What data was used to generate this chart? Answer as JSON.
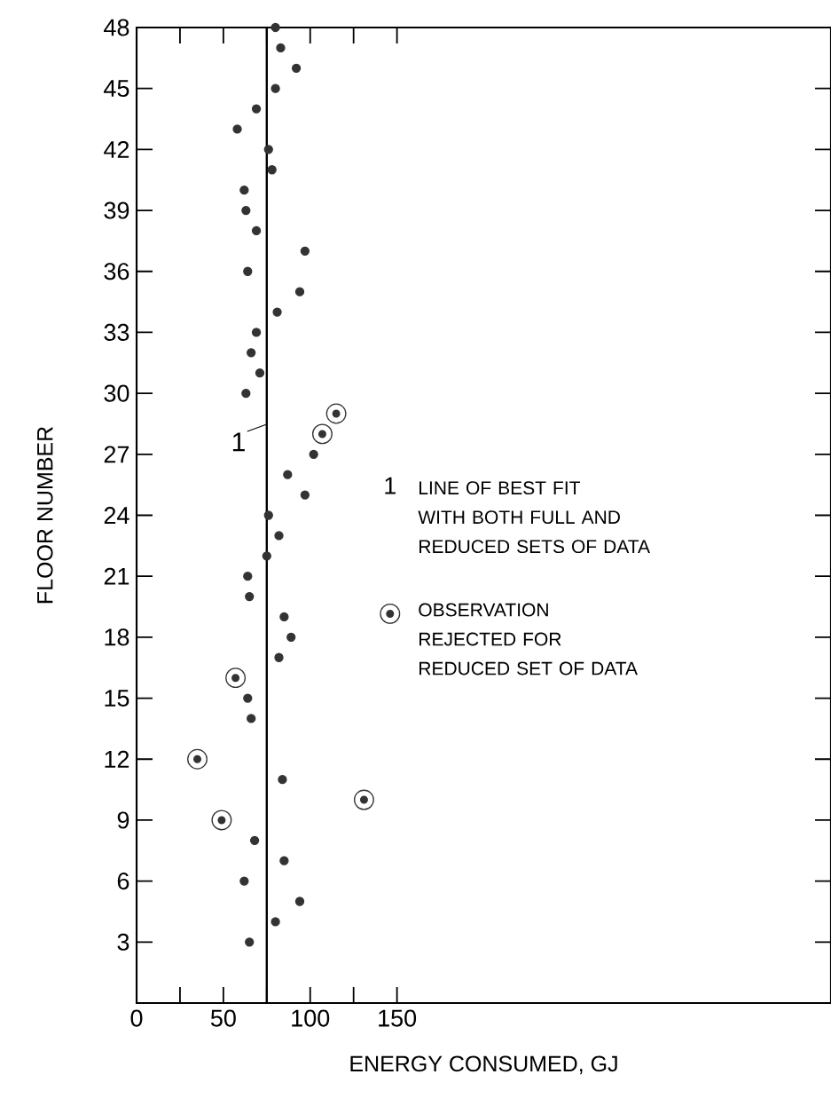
{
  "chart_data": {
    "type": "scatter",
    "xlabel": "ENERGY CONSUMED, GJ",
    "ylabel": "FLOOR NUMBER",
    "xlim": [
      0,
      400
    ],
    "ylim": [
      0,
      48
    ],
    "xticks": [
      0,
      50,
      100,
      150
    ],
    "yticks": [
      3,
      6,
      9,
      12,
      15,
      18,
      21,
      24,
      27,
      30,
      33,
      36,
      39,
      42,
      45,
      48
    ],
    "marker": "circle",
    "legend": "right",
    "series": [
      {
        "color": "#333333",
        "x": [
          80,
          83,
          92,
          80,
          69,
          58,
          76,
          78,
          62,
          63,
          69,
          97,
          64,
          94,
          81,
          69,
          66,
          71,
          63,
          102,
          87,
          97,
          76,
          82,
          75,
          64,
          65,
          85,
          89,
          82,
          64,
          66,
          84,
          68,
          85,
          62,
          94,
          80,
          65
        ],
        "values": [
          48,
          47,
          46,
          45,
          44,
          43,
          42,
          41,
          40,
          39,
          38,
          37,
          36,
          35,
          34,
          33,
          32,
          31,
          30,
          27,
          26,
          25,
          24,
          23,
          22,
          21,
          20,
          19,
          18,
          17,
          15,
          14,
          11,
          8,
          7,
          6,
          5,
          4,
          3
        ]
      },
      {
        "name": "OBSERVATION REJECTED FOR REDUCED SET OF DATA",
        "color": "#333333",
        "x": [
          115,
          107,
          57,
          35,
          131,
          49
        ],
        "values": [
          29,
          28,
          16,
          12,
          10,
          9
        ]
      }
    ],
    "ref_lines": [
      {
        "axis": "x",
        "value": 75,
        "color": "#000000",
        "line_style": "solid"
      }
    ],
    "annotations": [
      "1",
      "1",
      "LINE OF BEST FIT WITH BOTH FULL AND REDUCED SETS OF DATA"
    ]
  }
}
